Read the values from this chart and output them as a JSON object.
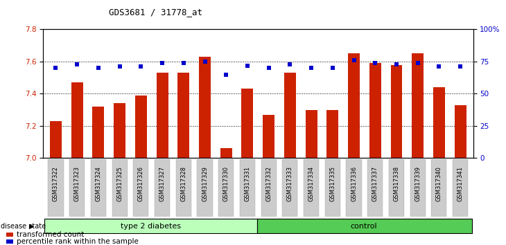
{
  "title": "GDS3681 / 31778_at",
  "samples": [
    "GSM317322",
    "GSM317323",
    "GSM317324",
    "GSM317325",
    "GSM317326",
    "GSM317327",
    "GSM317328",
    "GSM317329",
    "GSM317330",
    "GSM317331",
    "GSM317332",
    "GSM317333",
    "GSM317334",
    "GSM317335",
    "GSM317336",
    "GSM317337",
    "GSM317338",
    "GSM317339",
    "GSM317340",
    "GSM317341"
  ],
  "bar_values": [
    7.23,
    7.47,
    7.32,
    7.34,
    7.39,
    7.53,
    7.53,
    7.63,
    7.06,
    7.43,
    7.27,
    7.53,
    7.3,
    7.3,
    7.65,
    7.59,
    7.58,
    7.65,
    7.44,
    7.33
  ],
  "percentile_values": [
    70,
    73,
    70,
    71,
    71,
    74,
    74,
    75,
    65,
    72,
    70,
    73,
    70,
    70,
    76,
    74,
    73,
    74,
    71,
    71
  ],
  "bar_color": "#cc2200",
  "dot_color": "#0000cc",
  "ylim_left": [
    7.0,
    7.8
  ],
  "ylim_right": [
    0,
    100
  ],
  "yticks_left": [
    7.0,
    7.2,
    7.4,
    7.6,
    7.8
  ],
  "yticks_right": [
    0,
    25,
    50,
    75,
    100
  ],
  "ytick_labels_right": [
    "0",
    "25",
    "50",
    "75",
    "100%"
  ],
  "group1_label": "type 2 diabetes",
  "group2_label": "control",
  "group1_count": 10,
  "group2_count": 10,
  "legend_bar_label": "transformed count",
  "legend_dot_label": "percentile rank within the sample",
  "disease_state_label": "disease state",
  "group1_color": "#bbffbb",
  "group2_color": "#55cc55",
  "xticklabel_bg": "#cccccc",
  "bg_color": "#ffffff"
}
